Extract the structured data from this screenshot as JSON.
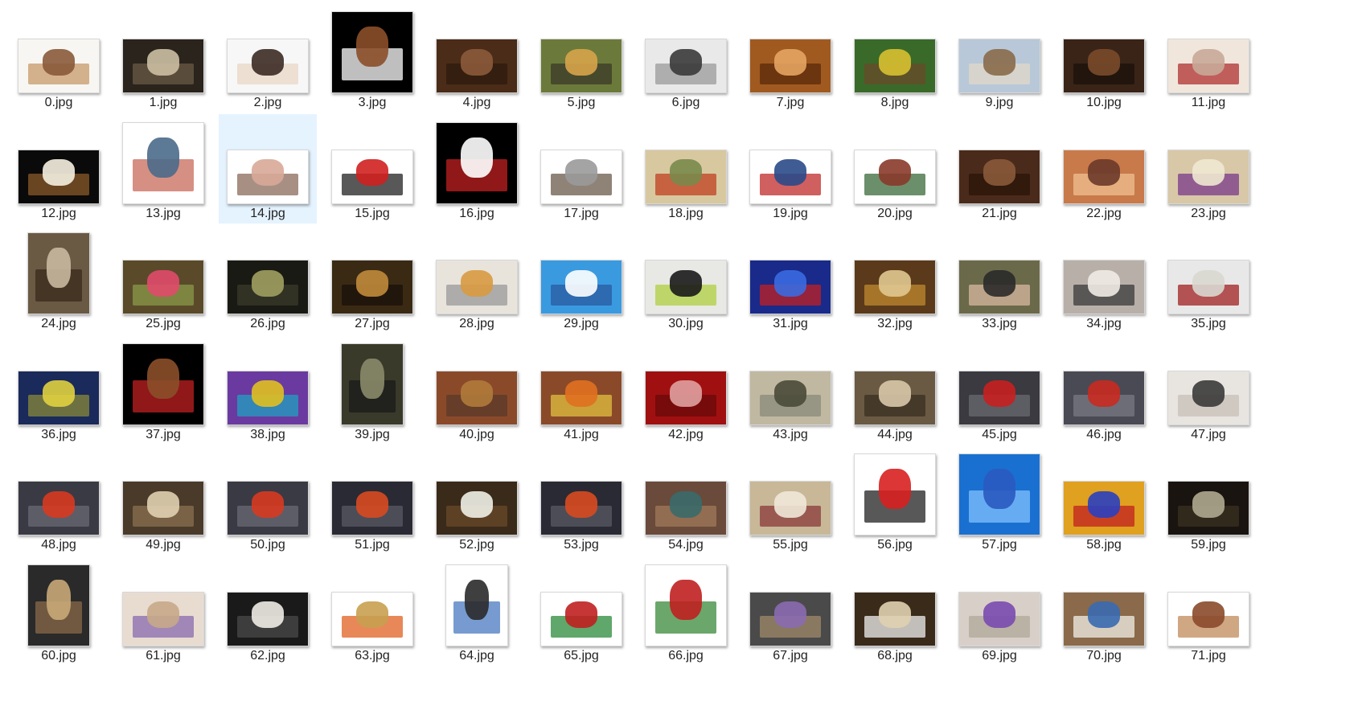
{
  "files": [
    {
      "name": "0.jpg",
      "orient": "land",
      "bg": "#f8f6f2",
      "fg": "#8a5a3a",
      "accent": "#c79a6a",
      "icon": "book-stack-icon"
    },
    {
      "name": "1.jpg",
      "orient": "land",
      "bg": "#2a241d",
      "fg": "#cbbfa3",
      "accent": "#6b5a44",
      "icon": "skull-icon"
    },
    {
      "name": "2.jpg",
      "orient": "land",
      "bg": "#f7f7f7",
      "fg": "#3b2a23",
      "accent": "#e9d7c5",
      "icon": "person-icon"
    },
    {
      "name": "3.jpg",
      "orient": "square",
      "bg": "#000000",
      "fg": "#8b4f2a",
      "accent": "#ffffff",
      "icon": "owl-icon"
    },
    {
      "name": "4.jpg",
      "orient": "land",
      "bg": "#4a2c18",
      "fg": "#8b5a3a",
      "accent": "#2e1a0e",
      "icon": "books-icon"
    },
    {
      "name": "5.jpg",
      "orient": "land",
      "bg": "#6b7a3a",
      "fg": "#d7a44a",
      "accent": "#3b3a2a",
      "icon": "sunset-book-icon"
    },
    {
      "name": "6.jpg",
      "orient": "land",
      "bg": "#e9e9e9",
      "fg": "#3a3a3a",
      "accent": "#9a9a9a",
      "icon": "books-glasses-icon"
    },
    {
      "name": "7.jpg",
      "orient": "land",
      "bg": "#a05a20",
      "fg": "#e4a460",
      "accent": "#5a2a0a",
      "icon": "book-tunnel-icon"
    },
    {
      "name": "8.jpg",
      "orient": "land",
      "bg": "#3a6a2a",
      "fg": "#d8c030",
      "accent": "#6a4a2a",
      "icon": "flowers-books-icon"
    },
    {
      "name": "9.jpg",
      "orient": "land",
      "bg": "#b8c8d8",
      "fg": "#8a6a4a",
      "accent": "#e0d8c8",
      "icon": "flying-book-icon"
    },
    {
      "name": "10.jpg",
      "orient": "land",
      "bg": "#3a2418",
      "fg": "#7a4a2a",
      "accent": "#1a100a",
      "icon": "library-icon"
    },
    {
      "name": "11.jpg",
      "orient": "land",
      "bg": "#f0e6dc",
      "fg": "#c8a898",
      "accent": "#b03030",
      "icon": "book-rose-icon"
    },
    {
      "name": "12.jpg",
      "orient": "land",
      "bg": "#0a0a0a",
      "fg": "#f5f0e0",
      "accent": "#8a5a2a",
      "icon": "open-book-icon"
    },
    {
      "name": "13.jpg",
      "orient": "square",
      "bg": "#ffffff",
      "fg": "#4a6a8a",
      "accent": "#c86a5a",
      "icon": "book-stack-icon"
    },
    {
      "name": "14.jpg",
      "orient": "land",
      "bg": "#ffffff",
      "fg": "#d8a898",
      "accent": "#8a6a5a",
      "icon": "book-stack-icon"
    },
    {
      "name": "15.jpg",
      "orient": "land",
      "bg": "#ffffff",
      "fg": "#d02020",
      "accent": "#202020",
      "icon": "notebook-icon"
    },
    {
      "name": "16.jpg",
      "orient": "square",
      "bg": "#000000",
      "fg": "#ffffff",
      "accent": "#c02020",
      "icon": "penguin-icon"
    },
    {
      "name": "17.jpg",
      "orient": "land",
      "bg": "#ffffff",
      "fg": "#9a9a9a",
      "accent": "#6a5a4a",
      "icon": "year-book-icon"
    },
    {
      "name": "18.jpg",
      "orient": "land",
      "bg": "#d8c8a0",
      "fg": "#7a8a4a",
      "accent": "#c04020",
      "icon": "fantasy-book-icon"
    },
    {
      "name": "19.jpg",
      "orient": "land",
      "bg": "#ffffff",
      "fg": "#2a4a8a",
      "accent": "#c02a2a",
      "icon": "books-icon"
    },
    {
      "name": "20.jpg",
      "orient": "land",
      "bg": "#ffffff",
      "fg": "#8a3a2a",
      "accent": "#3a6a3a",
      "icon": "book-stack-icon"
    },
    {
      "name": "21.jpg",
      "orient": "land",
      "bg": "#4a2a1a",
      "fg": "#8a5a3a",
      "accent": "#2a1408",
      "icon": "library-icon"
    },
    {
      "name": "22.jpg",
      "orient": "land",
      "bg": "#c87a4a",
      "fg": "#6a3a2a",
      "accent": "#f0c090",
      "icon": "landscape-book-icon"
    },
    {
      "name": "23.jpg",
      "orient": "land",
      "bg": "#d8c8a8",
      "fg": "#f0e8d0",
      "accent": "#7a3a8a",
      "icon": "book-lavender-icon"
    },
    {
      "name": "24.jpg",
      "orient": "portrait",
      "bg": "#6a5a44",
      "fg": "#c8b8a0",
      "accent": "#3a2a1a",
      "icon": "reading-kids-icon"
    },
    {
      "name": "25.jpg",
      "orient": "land",
      "bg": "#5a4a2a",
      "fg": "#e04a6a",
      "accent": "#8a9a4a",
      "icon": "flower-book-icon"
    },
    {
      "name": "26.jpg",
      "orient": "land",
      "bg": "#1a1a14",
      "fg": "#a0a060",
      "accent": "#3a3a2a",
      "icon": "church-window-icon"
    },
    {
      "name": "27.jpg",
      "orient": "land",
      "bg": "#3a2a14",
      "fg": "#c08a3a",
      "accent": "#1a1008",
      "icon": "reader-icon"
    },
    {
      "name": "28.jpg",
      "orient": "land",
      "bg": "#e8e4dc",
      "fg": "#d89a40",
      "accent": "#9a9a9a",
      "icon": "dictionary-icon"
    },
    {
      "name": "29.jpg",
      "orient": "land",
      "bg": "#3a9ae0",
      "fg": "#ffffff",
      "accent": "#2a5aa0",
      "icon": "flying-book-icon"
    },
    {
      "name": "30.jpg",
      "orient": "land",
      "bg": "#e8e8e4",
      "fg": "#1a1a1a",
      "accent": "#b0d040",
      "icon": "glasses-icon"
    },
    {
      "name": "31.jpg",
      "orient": "land",
      "bg": "#1a2a8a",
      "fg": "#3a6ae0",
      "accent": "#c02020",
      "icon": "rd-letters-icon"
    },
    {
      "name": "32.jpg",
      "orient": "land",
      "bg": "#5a3a1a",
      "fg": "#e0c890",
      "accent": "#c08a30",
      "icon": "teacup-icon"
    },
    {
      "name": "33.jpg",
      "orient": "land",
      "bg": "#6a6a4a",
      "fg": "#2a2a2a",
      "accent": "#d8b8a0",
      "icon": "ereader-icon"
    },
    {
      "name": "34.jpg",
      "orient": "land",
      "bg": "#b8b0a8",
      "fg": "#f0ece4",
      "accent": "#3a3a3a",
      "icon": "heart-book-icon"
    },
    {
      "name": "35.jpg",
      "orient": "land",
      "bg": "#e8e8e8",
      "fg": "#d8d8d0",
      "accent": "#a02020",
      "icon": "roses-book-icon"
    },
    {
      "name": "36.jpg",
      "orient": "land",
      "bg": "#1a2a5a",
      "fg": "#e0d040",
      "accent": "#8a8a3a",
      "icon": "caterpillar-icon"
    },
    {
      "name": "37.jpg",
      "orient": "square",
      "bg": "#000000",
      "fg": "#8b4f2a",
      "accent": "#c02020",
      "icon": "owl-icon"
    },
    {
      "name": "38.jpg",
      "orient": "land",
      "bg": "#6a3aa0",
      "fg": "#e0c020",
      "accent": "#20a0c0",
      "icon": "letters-icon"
    },
    {
      "name": "39.jpg",
      "orient": "portrait",
      "bg": "#3a3a2a",
      "fg": "#8a8a6a",
      "accent": "#1a1a1a",
      "icon": "reader-icon"
    },
    {
      "name": "40.jpg",
      "orient": "land",
      "bg": "#8a4a2a",
      "fg": "#b07a3a",
      "accent": "#5a3a2a",
      "icon": "monkey-icon"
    },
    {
      "name": "41.jpg",
      "orient": "land",
      "bg": "#8a4a2a",
      "fg": "#e07020",
      "accent": "#e0c040",
      "icon": "giraffe-letter-icon"
    },
    {
      "name": "42.jpg",
      "orient": "land",
      "bg": "#a01010",
      "fg": "#e0a0a0",
      "accent": "#6a0808",
      "icon": "alphabet-icon"
    },
    {
      "name": "43.jpg",
      "orient": "land",
      "bg": "#c0b8a0",
      "fg": "#4a4a3a",
      "accent": "#8a8a7a",
      "icon": "typewriter-icon"
    },
    {
      "name": "44.jpg",
      "orient": "land",
      "bg": "#6a5a44",
      "fg": "#d8c8a8",
      "accent": "#3a3020",
      "icon": "old-book-icon"
    },
    {
      "name": "45.jpg",
      "orient": "land",
      "bg": "#3a3a40",
      "fg": "#c82020",
      "accent": "#6a6a70",
      "icon": "apple-icon"
    },
    {
      "name": "46.jpg",
      "orient": "land",
      "bg": "#4a4a54",
      "fg": "#c82a20",
      "accent": "#7a7a84",
      "icon": "apple-icon"
    },
    {
      "name": "47.jpg",
      "orient": "land",
      "bg": "#e8e4e0",
      "fg": "#3a3a3a",
      "accent": "#c8c0b8",
      "icon": "reader-icon"
    },
    {
      "name": "48.jpg",
      "orient": "land",
      "bg": "#3a3a44",
      "fg": "#d83a20",
      "accent": "#6a6a74",
      "icon": "apple-icon"
    },
    {
      "name": "49.jpg",
      "orient": "land",
      "bg": "#4a3a2a",
      "fg": "#e0d0b0",
      "accent": "#8a7050",
      "icon": "book-glasses-icon"
    },
    {
      "name": "50.jpg",
      "orient": "land",
      "bg": "#3a3a44",
      "fg": "#d83a20",
      "accent": "#6a6a74",
      "icon": "apple-icon"
    },
    {
      "name": "51.jpg",
      "orient": "land",
      "bg": "#2a2a34",
      "fg": "#d84a20",
      "accent": "#5a5a64",
      "icon": "apple-icon"
    },
    {
      "name": "52.jpg",
      "orient": "land",
      "bg": "#3a2a1a",
      "fg": "#f0f0e8",
      "accent": "#6a4a2a",
      "icon": "blossom-book-icon"
    },
    {
      "name": "53.jpg",
      "orient": "land",
      "bg": "#2a2a34",
      "fg": "#d84a20",
      "accent": "#5a5a64",
      "icon": "apple-icon"
    },
    {
      "name": "54.jpg",
      "orient": "land",
      "bg": "#6a4a3a",
      "fg": "#3a6a6a",
      "accent": "#a07a5a",
      "icon": "book-wall-icon"
    },
    {
      "name": "55.jpg",
      "orient": "land",
      "bg": "#c8b898",
      "fg": "#f0e8d8",
      "accent": "#8a3a3a",
      "icon": "book-flower-icon"
    },
    {
      "name": "56.jpg",
      "orient": "square",
      "bg": "#ffffff",
      "fg": "#d82020",
      "accent": "#202020",
      "icon": "notebook-icon"
    },
    {
      "name": "57.jpg",
      "orient": "square",
      "bg": "#1a70d0",
      "fg": "#2a5ac0",
      "accent": "#80c0ff",
      "icon": "section-sign-icon"
    },
    {
      "name": "58.jpg",
      "orient": "land",
      "bg": "#e0a020",
      "fg": "#2a40c0",
      "accent": "#c02020",
      "icon": "abc-icon"
    },
    {
      "name": "59.jpg",
      "orient": "land",
      "bg": "#1a1410",
      "fg": "#b0a890",
      "accent": "#3a3020",
      "icon": "skull-icon"
    },
    {
      "name": "60.jpg",
      "orient": "portrait",
      "bg": "#2a2a2a",
      "fg": "#c8a878",
      "accent": "#8a6a4a",
      "icon": "book-pages-icon"
    },
    {
      "name": "61.jpg",
      "orient": "land",
      "bg": "#e8dcd0",
      "fg": "#c8a888",
      "accent": "#8a6ab0",
      "icon": "books-flowers-icon"
    },
    {
      "name": "62.jpg",
      "orient": "land",
      "bg": "#1a1a1a",
      "fg": "#f0ece4",
      "accent": "#4a4a4a",
      "icon": "handwritten-book-icon"
    },
    {
      "name": "63.jpg",
      "orient": "land",
      "bg": "#ffffff",
      "fg": "#c8a050",
      "accent": "#e06020",
      "icon": "box-rss-icon"
    },
    {
      "name": "64.jpg",
      "orient": "portrait",
      "bg": "#ffffff",
      "fg": "#2a2a2a",
      "accent": "#4a7ac0",
      "icon": "woman-icon"
    },
    {
      "name": "65.jpg",
      "orient": "land",
      "bg": "#ffffff",
      "fg": "#c02020",
      "accent": "#2a8a3a",
      "icon": "bookshelf-icon"
    },
    {
      "name": "66.jpg",
      "orient": "square",
      "bg": "#ffffff",
      "fg": "#c02020",
      "accent": "#3a8a3a",
      "icon": "books-icon"
    },
    {
      "name": "67.jpg",
      "orient": "land",
      "bg": "#4a4a4a",
      "fg": "#8a6ab0",
      "accent": "#a08a6a",
      "icon": "books-flowers-icon"
    },
    {
      "name": "68.jpg",
      "orient": "land",
      "bg": "#3a2a1a",
      "fg": "#e0d0b0",
      "accent": "#f0f0f0",
      "icon": "open-book-icon"
    },
    {
      "name": "69.jpg",
      "orient": "land",
      "bg": "#d8d0c8",
      "fg": "#7a4ab0",
      "accent": "#b0a898",
      "icon": "book-lavender-icon"
    },
    {
      "name": "70.jpg",
      "orient": "land",
      "bg": "#8a6a4a",
      "fg": "#3a6ab0",
      "accent": "#f0f0e8",
      "icon": "coffee-notebook-icon"
    },
    {
      "name": "71.jpg",
      "orient": "land",
      "bg": "#ffffff",
      "fg": "#8a4a2a",
      "accent": "#c08a5a",
      "icon": "book-stack-icon"
    }
  ],
  "selected": "14.jpg"
}
